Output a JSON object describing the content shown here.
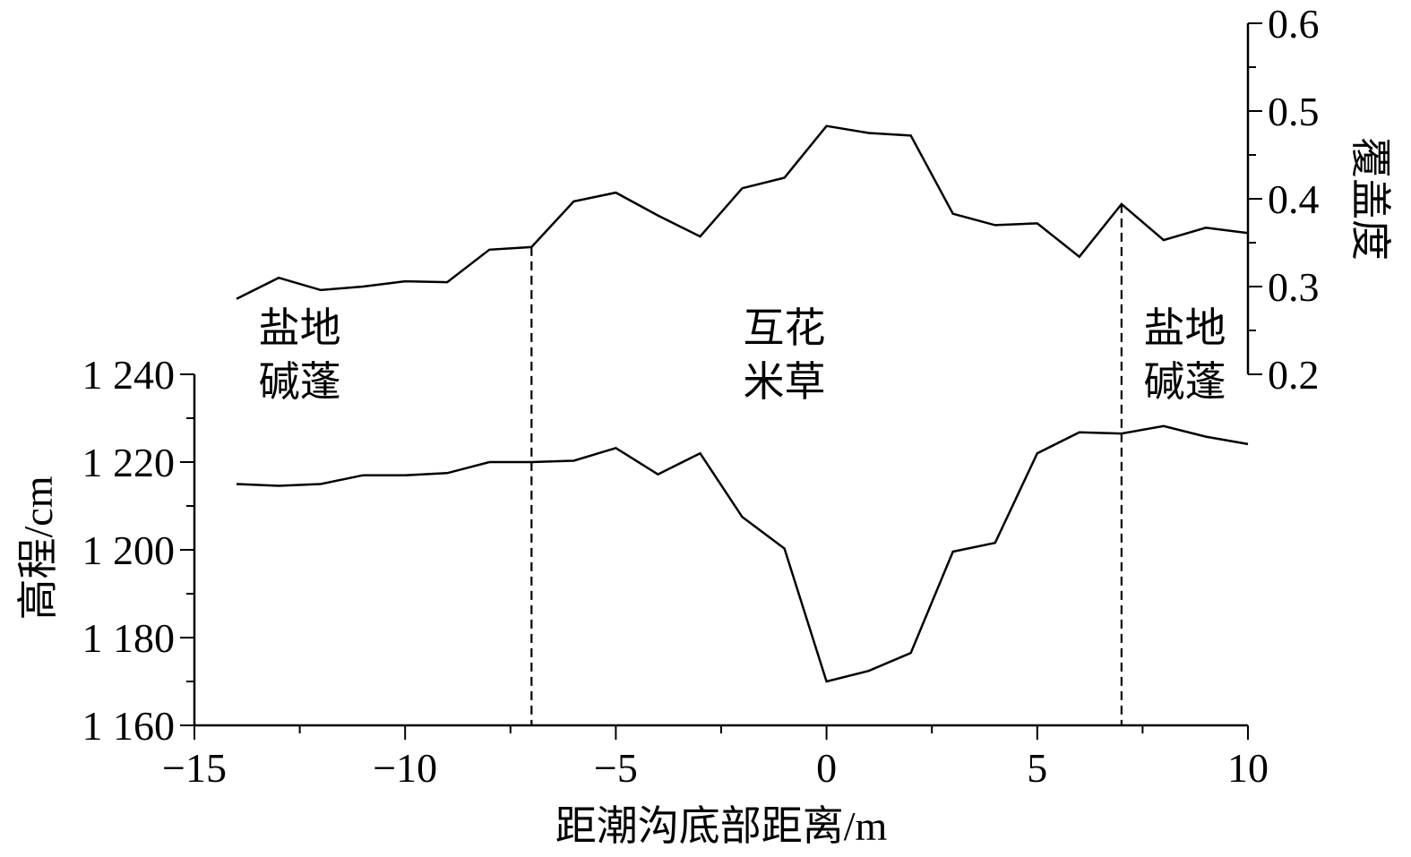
{
  "chart_data": {
    "type": "line",
    "xlabel": "距潮沟底部距离/m",
    "y_left_label": "高程/cm",
    "y_right_label": "覆盖度",
    "xlim": [
      -15,
      10
    ],
    "x_ticks": [
      -15,
      -10,
      -5,
      0,
      5,
      10
    ],
    "x_tick_labels": [
      "−15",
      "−10",
      "−5",
      "0",
      "5",
      "10"
    ],
    "y_left_lim": [
      1160,
      1240
    ],
    "y_left_ticks": [
      1160,
      1180,
      1200,
      1220,
      1240
    ],
    "y_left_tick_labels": [
      "1 160",
      "1 180",
      "1 200",
      "1 220",
      "1 240"
    ],
    "y_right_lim": [
      0.2,
      0.6
    ],
    "y_right_ticks": [
      0.2,
      0.3,
      0.4,
      0.5,
      0.6
    ],
    "y_right_tick_labels": [
      "0.2",
      "0.3",
      "0.4",
      "0.5",
      "0.6"
    ],
    "series": [
      {
        "axis": "left",
        "x": [
          -14,
          -13,
          -12,
          -11,
          -10,
          -9,
          -8,
          -7,
          -6,
          -5,
          -4,
          -3,
          -2,
          -1,
          0,
          1,
          2,
          3,
          4,
          5,
          6,
          7,
          8,
          9,
          10
        ],
        "values": [
          1215,
          1214.6,
          1215,
          1217,
          1217,
          1217.5,
          1220,
          1220,
          1220.3,
          1223.2,
          1217.2,
          1222,
          1207.5,
          1200.3,
          1170,
          1172.4,
          1176.5,
          1199.6,
          1201.6,
          1222,
          1226.8,
          1226.5,
          1228.2,
          1225.8,
          1224.1
        ]
      },
      {
        "axis": "right",
        "x": [
          -14,
          -13,
          -12,
          -11,
          -10,
          -9,
          -8,
          -7,
          -6,
          -5,
          -4,
          -3,
          -2,
          -1,
          0,
          1,
          2,
          3,
          4,
          5,
          6,
          7,
          8,
          9,
          10
        ],
        "values": [
          0.286,
          0.31,
          0.296,
          0.3,
          0.306,
          0.305,
          0.342,
          0.345,
          0.397,
          0.407,
          0.381,
          0.357,
          0.412,
          0.424,
          0.483,
          0.475,
          0.472,
          0.383,
          0.37,
          0.372,
          0.334,
          0.394,
          0.353,
          0.367,
          0.361
        ]
      }
    ],
    "dividers_x": [
      -7,
      7
    ],
    "zones": [
      {
        "x": -12.5,
        "lines": [
          "盐地",
          "碱蓬"
        ]
      },
      {
        "x": -1,
        "lines": [
          "互花",
          "米草"
        ]
      },
      {
        "x": 8.5,
        "lines": [
          "盐地",
          "碱蓬"
        ]
      }
    ]
  }
}
